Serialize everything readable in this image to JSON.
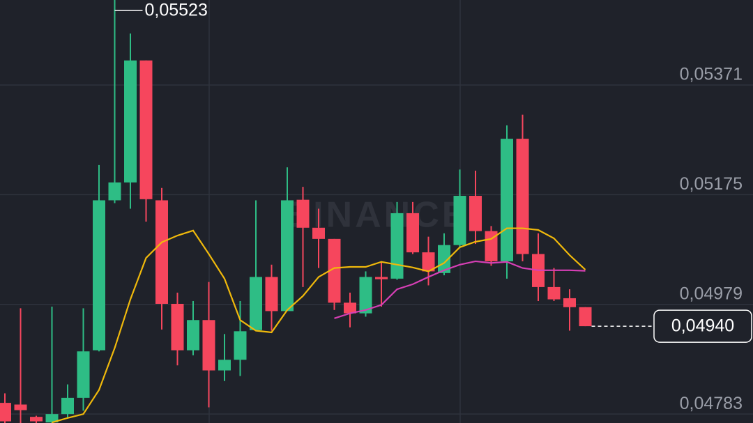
{
  "chart_data": {
    "type": "candlestick",
    "watermark": "BINANCE",
    "up_color": "#2ebd85",
    "down_color": "#f6465d",
    "open": [
      0.04803,
      0.048,
      0.04778,
      0.04768,
      0.04783,
      0.04812,
      0.04897,
      0.05165,
      0.05197,
      0.05415,
      0.05165,
      0.0498,
      0.04897,
      0.04951,
      0.04861,
      0.0488,
      0.04933,
      0.05028,
      0.04967,
      0.05166,
      0.05116,
      0.05096,
      0.04982,
      0.04963,
      0.05028,
      0.05025,
      0.05142,
      0.05072,
      0.05035,
      0.05085,
      0.05173,
      0.0511,
      0.05056,
      0.05275,
      0.05069,
      0.0501,
      0.0499,
      0.04974
    ],
    "high": [
      0.0482,
      0.04972,
      0.0478,
      0.04975,
      0.04836,
      0.04972,
      0.05228,
      0.05523,
      0.05463,
      0.05415,
      0.05187,
      0.05,
      0.04985,
      0.05019,
      0.04926,
      0.04985,
      0.05165,
      0.0505,
      0.05224,
      0.05189,
      0.0515,
      0.05096,
      0.05,
      0.05038,
      0.05056,
      0.05162,
      0.05162,
      0.051,
      0.05106,
      0.0522,
      0.05218,
      0.05119,
      0.05299,
      0.05318,
      0.05106,
      0.05044,
      0.05006,
      0.04974
    ],
    "low": [
      0.04765,
      0.0476,
      0.04765,
      0.0476,
      0.04776,
      0.04789,
      0.04895,
      0.0516,
      0.0515,
      0.05127,
      0.04934,
      0.0487,
      0.04888,
      0.04795,
      0.04842,
      0.04851,
      0.04933,
      0.04932,
      0.04967,
      0.0501,
      0.05044,
      0.04969,
      0.04938,
      0.04957,
      0.04975,
      0.05023,
      0.05069,
      0.05013,
      0.05031,
      0.05081,
      0.05087,
      0.05048,
      0.05025,
      0.05056,
      0.04985,
      0.04985,
      0.04932,
      0.0494
    ],
    "close": [
      0.0477,
      0.0479,
      0.0477,
      0.04783,
      0.04812,
      0.04895,
      0.05165,
      0.05197,
      0.05415,
      0.05167,
      0.0498,
      0.04897,
      0.04951,
      0.04861,
      0.0488,
      0.04931,
      0.05028,
      0.04967,
      0.05165,
      0.05116,
      0.05096,
      0.04982,
      0.04963,
      0.05028,
      0.05024,
      0.05142,
      0.05072,
      0.05038,
      0.05085,
      0.05173,
      0.0511,
      0.05056,
      0.05275,
      0.05069,
      0.0501,
      0.04988,
      0.04974,
      0.0494
    ],
    "series": [
      {
        "color": "#f0b90b",
        "values": [
          null,
          null,
          null,
          0.04768,
          0.04776,
          0.04783,
          0.04826,
          0.04901,
          0.04988,
          0.05062,
          0.0509,
          0.05102,
          0.05111,
          0.05069,
          0.05025,
          0.04951,
          0.04932,
          0.04929,
          0.04969,
          0.04994,
          0.05028,
          0.05044,
          0.05046,
          0.05046,
          0.05055,
          0.0505,
          0.05045,
          0.05038,
          0.05053,
          0.05081,
          0.05091,
          0.05096,
          0.05115,
          0.05115,
          0.05112,
          0.05097,
          0.05067,
          0.05041
        ]
      },
      {
        "color": "#d63fb5",
        "values": [
          null,
          null,
          null,
          null,
          null,
          null,
          null,
          null,
          null,
          null,
          null,
          null,
          null,
          null,
          null,
          null,
          null,
          null,
          null,
          null,
          null,
          0.04954,
          0.04963,
          0.04969,
          0.04978,
          0.05006,
          0.05015,
          0.05028,
          0.0504,
          0.0505,
          0.05056,
          0.05053,
          0.05055,
          0.05044,
          0.0504,
          0.0504,
          0.0504,
          0.05039
        ]
      }
    ],
    "ylim": [
      0.04767,
      0.05523
    ],
    "yticks": [
      {
        "value": 0.04783,
        "label": "0,04783"
      },
      {
        "value": 0.04979,
        "label": "0,04979"
      },
      {
        "value": 0.05175,
        "label": "0,05175"
      },
      {
        "value": 0.05371,
        "label": "0,05371"
      }
    ],
    "grid": true,
    "max_label": {
      "value": 0.05523,
      "label": "0,05523"
    },
    "last_price": {
      "value": 0.0494,
      "label": "0,04940"
    }
  }
}
